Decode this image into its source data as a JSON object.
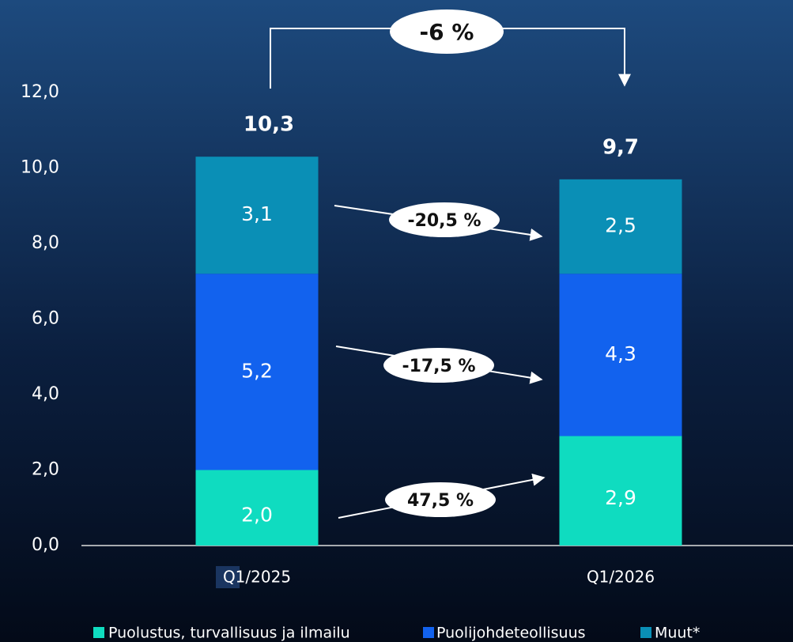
{
  "chart_data": {
    "type": "stacked_bar",
    "categories": [
      "Q1/2025",
      "Q1/2026"
    ],
    "series": [
      {
        "name": "Puolustus, turvallisuus ja ilmailu",
        "color": "#0fdcc0",
        "values": [
          2.0,
          2.9
        ],
        "value_labels": [
          "2,0",
          "2,9"
        ]
      },
      {
        "name": "Puolijohdeteollisuus",
        "color": "#1262ee",
        "values": [
          5.2,
          4.3
        ],
        "value_labels": [
          "5,2",
          "4,3"
        ]
      },
      {
        "name": "Muut*",
        "color": "#0a8fb6",
        "values": [
          3.1,
          2.5
        ],
        "value_labels": [
          "3,1",
          "2,5"
        ]
      }
    ],
    "totals": [
      10.3,
      9.7
    ],
    "total_labels": [
      "10,3",
      "9,7"
    ],
    "annotations": [
      "-6 %",
      "-20,5 %",
      "-17,5 %",
      "47,5 %"
    ],
    "ylim": [
      0,
      12
    ],
    "yticks": [
      {
        "value": 0,
        "label": "0,0"
      },
      {
        "value": 2,
        "label": "2,0"
      },
      {
        "value": 4,
        "label": "4,0"
      },
      {
        "value": 6,
        "label": "6,0"
      },
      {
        "value": 8,
        "label": "8,0"
      },
      {
        "value": 10,
        "label": "10,0"
      },
      {
        "value": 12,
        "label": "12,0"
      }
    ],
    "legend": "bottom"
  }
}
